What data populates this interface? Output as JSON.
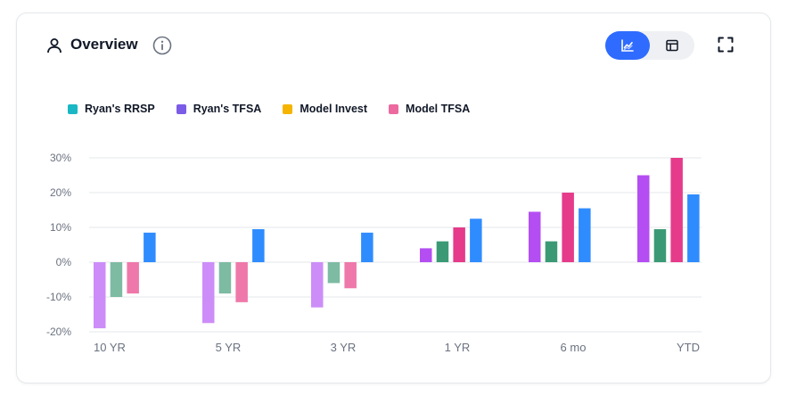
{
  "header": {
    "title": "Overview",
    "icons": {
      "user": "user-icon",
      "info": "info-icon",
      "chart_view": "line-chart-icon",
      "table_view": "table-icon",
      "expand": "expand-icon"
    }
  },
  "colors": {
    "toggle_active": "#2f6bff",
    "legend": [
      "#1ab8c4",
      "#7b5ce6",
      "#f5b400",
      "#ec6aa0"
    ],
    "bars": [
      "#c47ff7",
      "#72b49a",
      "#ef6fa6",
      "#2f8cff"
    ]
  },
  "legend": [
    {
      "label": "Ryan's RRSP",
      "color": "#1ab8c4"
    },
    {
      "label": "Ryan's TFSA",
      "color": "#7b5ce6"
    },
    {
      "label": "Model Invest",
      "color": "#f5b400"
    },
    {
      "label": "Model TFSA",
      "color": "#ec6aa0"
    }
  ],
  "chart_data": {
    "type": "bar",
    "categories": [
      "10 YR",
      "5 YR",
      "3 YR",
      "1 YR",
      "6 mo",
      "YTD"
    ],
    "y_ticks": [
      "30%",
      "20%",
      "10%",
      "0%",
      "-10%",
      "-20%"
    ],
    "ylim": [
      -20,
      30
    ],
    "grid": true,
    "legend_position": "top-left",
    "series": [
      {
        "values": [
          -19,
          -17.5,
          -13,
          4,
          14.5,
          25
        ],
        "colors": [
          "#cc8df8",
          "#cc8df8",
          "#cc8df8",
          "#b44ef2",
          "#b44ef2",
          "#b44ef2"
        ]
      },
      {
        "values": [
          -10,
          -9,
          -6,
          6,
          6,
          9.5
        ],
        "colors": [
          "#7dbba3",
          "#7dbba3",
          "#7dbba3",
          "#3b9a75",
          "#3b9a75",
          "#3b9a75"
        ]
      },
      {
        "values": [
          -9,
          -11.5,
          -7.5,
          10,
          20,
          30
        ],
        "colors": [
          "#ef78aa",
          "#ef78aa",
          "#ef78aa",
          "#e53b8a",
          "#e53b8a",
          "#e53b8a"
        ]
      },
      {
        "values": [
          8.5,
          9.5,
          8.5,
          12.5,
          15.5,
          19.5
        ],
        "colors": [
          "#2f8cff",
          "#2f8cff",
          "#2f8cff",
          "#2f8cff",
          "#2f8cff",
          "#2f8cff"
        ]
      }
    ]
  }
}
